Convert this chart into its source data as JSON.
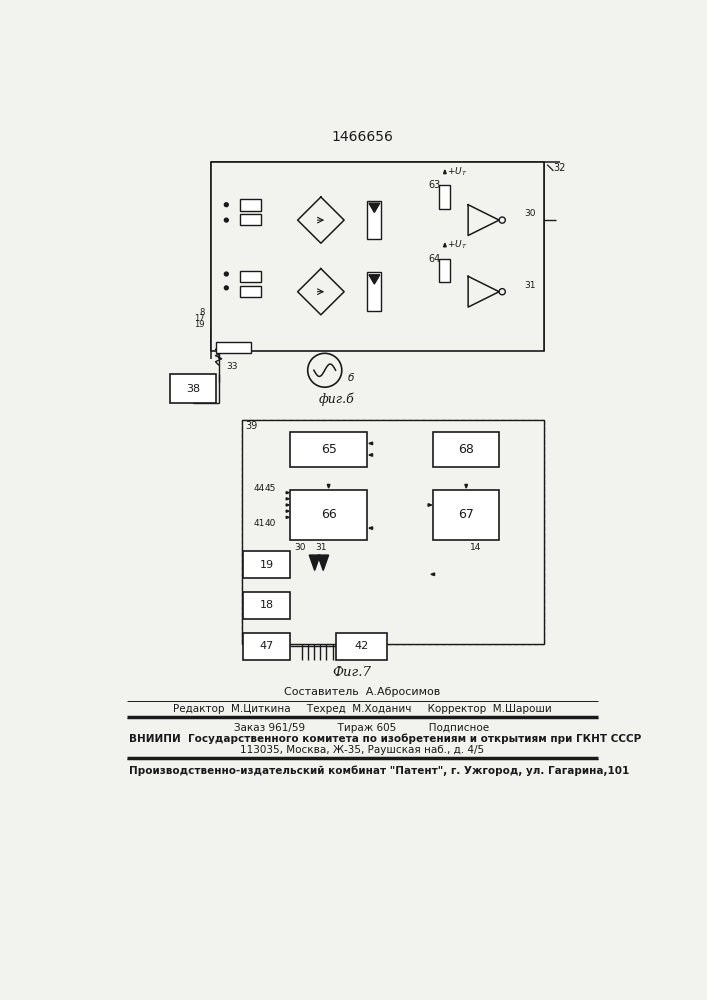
{
  "title": "1466656",
  "bg_color": "#f2f2ee",
  "line_color": "#1a1a1a",
  "text_color": "#1a1a1a",
  "composer": "Составитель  А.Абросимов",
  "editor_line": "Редактор  М.Циткина     Техред  М.Ходанич     Корректор  М.Шароши",
  "order_line": "Заказ 961/59          Тираж 605          Подписное",
  "vnipi_line1": "ВНИИПИ  Государственного комитета по изобретениям и открытиям при ГКНТ СССР",
  "vnipi_line2": "113035, Москва, Ж-35, Раушская наб., д. 4/5",
  "patent_line": "Производственно-издательский комбинат \"Патент\", г. Ужгород, ул. Гагарина,101"
}
